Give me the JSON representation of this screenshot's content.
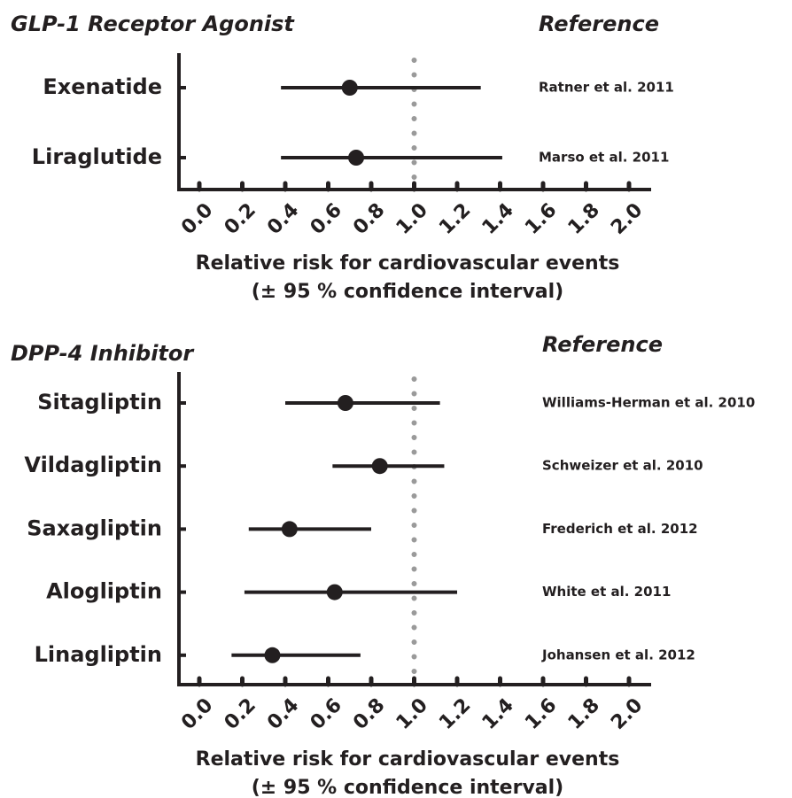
{
  "chart_data": [
    {
      "type": "forest",
      "title": "GLP-1 Receptor Agonist",
      "reference_header": "Reference",
      "categories": [
        "Exenatide",
        "Liraglutide"
      ],
      "values": [
        0.7,
        0.73
      ],
      "lower": [
        0.38,
        0.38
      ],
      "upper": [
        1.31,
        1.41
      ],
      "references": [
        "Ratner et al. 2011",
        "Marso et al. 2011"
      ],
      "xlim": [
        -0.1,
        2.1
      ],
      "xticks": [
        {
          "value": 0,
          "label": "0.0"
        },
        {
          "value": 0.2,
          "label": "0.2"
        },
        {
          "value": 0.4,
          "label": "0.4"
        },
        {
          "value": 0.6,
          "label": "0.6"
        },
        {
          "value": 0.8,
          "label": "0.8"
        },
        {
          "value": 1,
          "label": "1.0"
        },
        {
          "value": 1.2,
          "label": "1.2"
        },
        {
          "value": 1.4,
          "label": "1.4"
        },
        {
          "value": 1.6,
          "label": "1.6"
        },
        {
          "value": 1.8,
          "label": "1.8"
        },
        {
          "value": 2,
          "label": "2.0"
        }
      ],
      "reference_line": 1,
      "xlabel": [
        "Relative risk for cardiovascular events",
        "(± 95 % confidence interval)"
      ],
      "color": "#231f20",
      "reference_line_color": "#9a9a9a"
    },
    {
      "type": "forest",
      "title": "DPP-4 Inhibitor",
      "reference_header": "Reference",
      "categories": [
        "Sitagliptin",
        "Vildagliptin",
        "Saxagliptin",
        "Alogliptin",
        "Linagliptin"
      ],
      "values": [
        0.68,
        0.84,
        0.42,
        0.63,
        0.34
      ],
      "lower": [
        0.4,
        0.62,
        0.23,
        0.21,
        0.15
      ],
      "upper": [
        1.12,
        1.14,
        0.8,
        1.2,
        0.75
      ],
      "references": [
        "Williams-Herman et al. 2010",
        "Schweizer et al. 2010",
        "Frederich et al. 2012",
        "White et al. 2011",
        "Johansen et al. 2012"
      ],
      "xlim": [
        -0.1,
        2.1
      ],
      "xticks": [
        {
          "value": 0,
          "label": "0.0"
        },
        {
          "value": 0.2,
          "label": "0.2"
        },
        {
          "value": 0.4,
          "label": "0.4"
        },
        {
          "value": 0.6,
          "label": "0.6"
        },
        {
          "value": 0.8,
          "label": "0.8"
        },
        {
          "value": 1,
          "label": "1.0"
        },
        {
          "value": 1.2,
          "label": "1.2"
        },
        {
          "value": 1.4,
          "label": "1.4"
        },
        {
          "value": 1.6,
          "label": "1.6"
        },
        {
          "value": 1.8,
          "label": "1.8"
        },
        {
          "value": 2,
          "label": "2.0"
        }
      ],
      "reference_line": 1,
      "xlabel": [
        "Relative risk for cardiovascular events",
        "(± 95 % confidence interval)"
      ],
      "color": "#231f20",
      "reference_line_color": "#9a9a9a"
    }
  ]
}
